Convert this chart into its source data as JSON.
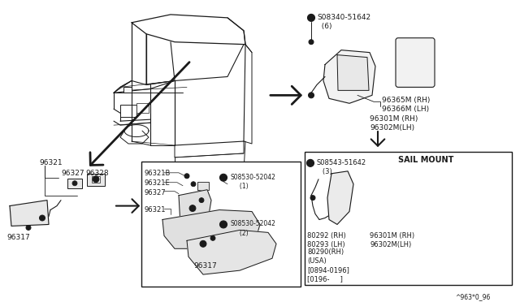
{
  "bg_color": "#ffffff",
  "line_color": "#1a1a1a",
  "fig_width": 6.4,
  "fig_height": 3.72,
  "dpi": 100,
  "footer": "^963*0_96",
  "texts": {
    "screw_top": "S08340-51642\n  (6)",
    "label_96365": "96365M (RH)\n96366M (LH)",
    "label_96301_top": "96301M (RH)\n96302M(LH)",
    "sail_title": "SAIL MOUNT",
    "sail_screw": "S08543-51642\n   (3)",
    "label_80292": "80292 (RH)\n80293 (LH)",
    "label_80290": "80290(RH)\n(USA)\n[0894-0196]\n[0196-     ]",
    "label_96301_sail": "96301M (RH)\n96302M(LH)",
    "label_96321_left": "96321",
    "label_96327_left": "96327",
    "label_96328_left": "96328",
    "label_96317_left": "96317",
    "box_96321B": "96321B",
    "box_96321E": "96321E",
    "box_96327": "96327",
    "box_96321": "96321",
    "box_96317": "96317",
    "box_screw1": "S08530-52042\n     (1)",
    "box_screw2": "S08530-52042\n     (2)"
  }
}
